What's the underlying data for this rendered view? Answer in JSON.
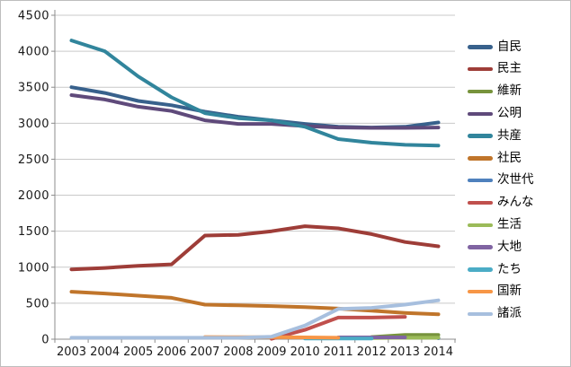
{
  "frame": {
    "background": "#FFFFFF",
    "border_color": "#BDBDBD"
  },
  "chart_data": {
    "type": "line",
    "title": "",
    "xlabel": "",
    "ylabel": "",
    "ylim": [
      0,
      4500
    ],
    "y_tick_step": 500,
    "grid": "horizontal",
    "legend_position": "right",
    "axis_color": "#8C8C8C",
    "gridline_color": "#C9C9C9",
    "label_color": "#1A1A1A",
    "categories": [
      "2003",
      "2004",
      "2005",
      "2006",
      "2007",
      "2008",
      "2009",
      "2010",
      "2011",
      "2012",
      "2013",
      "2014"
    ],
    "y_ticks": [
      "0",
      "500",
      "1000",
      "1500",
      "2000",
      "2500",
      "3000",
      "3500",
      "4000",
      "4500"
    ],
    "series": [
      {
        "name": "自民",
        "color": "#38618C",
        "values": [
          3500,
          3420,
          3310,
          3250,
          3160,
          3090,
          3040,
          2990,
          2950,
          2940,
          2950,
          3010
        ]
      },
      {
        "name": "民主",
        "color": "#9E3D38",
        "values": [
          970,
          990,
          1020,
          1040,
          1440,
          1450,
          1500,
          1570,
          1540,
          1460,
          1350,
          1290
        ]
      },
      {
        "name": "維新",
        "color": "#77933C",
        "values": [
          null,
          null,
          null,
          null,
          null,
          null,
          null,
          null,
          null,
          30,
          60,
          60
        ]
      },
      {
        "name": "公明",
        "color": "#5F4A7B",
        "values": [
          3390,
          3330,
          3230,
          3170,
          3040,
          2990,
          2990,
          2960,
          2940,
          2935,
          2935,
          2940
        ]
      },
      {
        "name": "共産",
        "color": "#31859C",
        "values": [
          4150,
          4000,
          3650,
          3360,
          3140,
          3070,
          3040,
          2950,
          2780,
          2730,
          2700,
          2690
        ]
      },
      {
        "name": "社民",
        "color": "#C0752B",
        "values": [
          660,
          635,
          605,
          575,
          480,
          470,
          460,
          445,
          425,
          395,
          365,
          345
        ]
      },
      {
        "name": "次世代",
        "color": "#4F81BD",
        "values": [
          null,
          null,
          null,
          null,
          null,
          null,
          null,
          null,
          null,
          null,
          null,
          15
        ]
      },
      {
        "name": "みんな",
        "color": "#C0504D",
        "values": [
          null,
          null,
          null,
          null,
          null,
          null,
          5,
          130,
          300,
          300,
          310,
          null
        ]
      },
      {
        "name": "生活",
        "color": "#9BBB59",
        "values": [
          null,
          null,
          null,
          null,
          null,
          null,
          null,
          null,
          null,
          15,
          20,
          20
        ]
      },
      {
        "name": "大地",
        "color": "#8064A2",
        "values": [
          null,
          null,
          null,
          null,
          null,
          null,
          null,
          null,
          25,
          25,
          25,
          null
        ]
      },
      {
        "name": "たち",
        "color": "#4BACC6",
        "values": [
          null,
          null,
          null,
          null,
          null,
          null,
          null,
          10,
          10,
          10,
          null,
          null
        ]
      },
      {
        "name": "国新",
        "color": "#F79646",
        "values": [
          null,
          null,
          null,
          null,
          30,
          28,
          27,
          25,
          20,
          null,
          null,
          null
        ]
      },
      {
        "name": "諸派",
        "color": "#A7BFDE",
        "values": [
          20,
          20,
          20,
          20,
          20,
          20,
          35,
          190,
          420,
          435,
          480,
          540
        ]
      }
    ]
  }
}
